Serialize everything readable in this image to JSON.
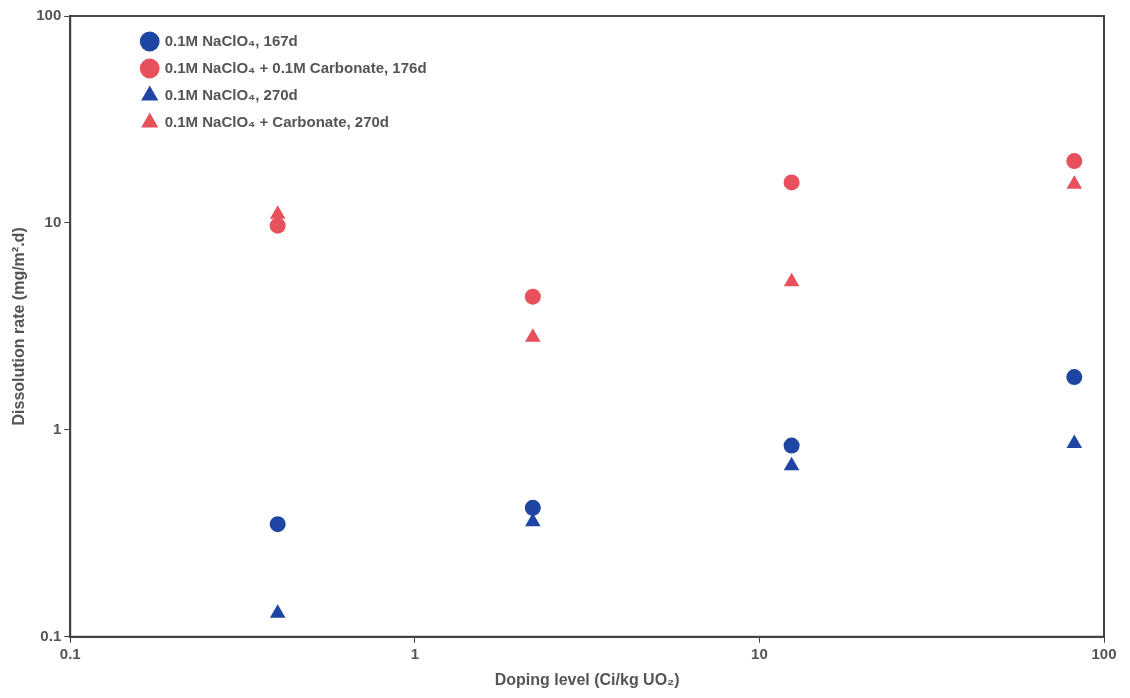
{
  "chart_data": {
    "type": "scatter",
    "xlabel": "Doping level (Ci/kg UO₂)",
    "ylabel": "Dissolution rate (mg/m².d)",
    "log": "xy",
    "xlim": [
      0.1,
      100
    ],
    "xticks": [
      0.1,
      1,
      10,
      100
    ],
    "ylim": [
      0.1,
      100
    ],
    "yticks": [
      0.1,
      1,
      10,
      100
    ],
    "grid": false,
    "legend": "top left",
    "x": [
      0.4,
      2.2,
      12.4,
      82
    ],
    "series": [
      {
        "name": "0.1M NaClO₄, 167d",
        "color": "#1f45a3",
        "marker": "circle",
        "values": [
          0.35,
          0.42,
          0.84,
          1.8
        ]
      },
      {
        "name": "0.1M NaClO₄ + 0.1M Carbonate, 176d",
        "color": "#e8505b",
        "marker": "circle",
        "values": [
          9.7,
          4.4,
          15.7,
          19.9
        ]
      },
      {
        "name": "0.1M NaClO₄, 270d",
        "color": "#1f45a3",
        "marker": "triangle",
        "values": [
          0.13,
          0.36,
          0.67,
          0.86
        ]
      },
      {
        "name": "0.1M NaClO₄ + Carbonate, 270d",
        "color": "#e8505b",
        "marker": "triangle",
        "values": [
          11,
          2.8,
          5.2,
          15.4
        ]
      }
    ]
  }
}
